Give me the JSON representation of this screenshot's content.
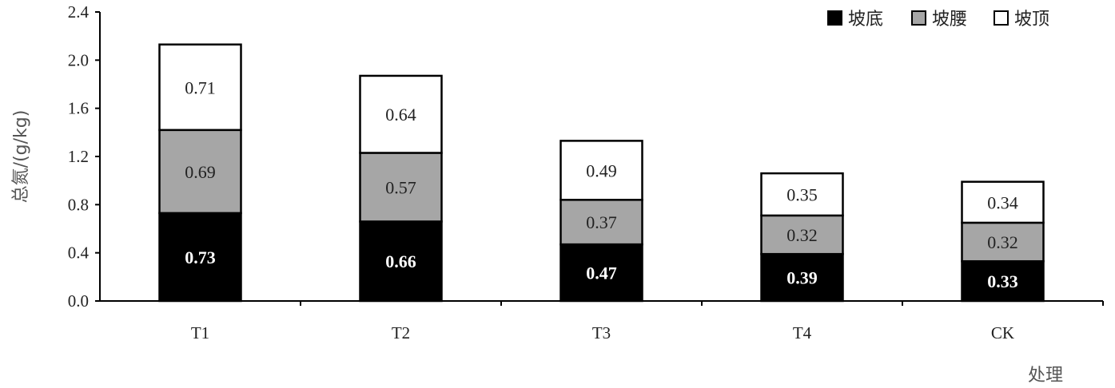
{
  "chart_data": {
    "type": "bar",
    "stacked": true,
    "categories": [
      "T1",
      "T2",
      "T3",
      "T4",
      "CK"
    ],
    "series": [
      {
        "name": "坡底",
        "values": [
          0.73,
          0.66,
          0.47,
          0.39,
          0.33
        ],
        "color": "#000000",
        "labels": [
          "0.73",
          "0.66",
          "0.47",
          "0.39",
          "0.33"
        ],
        "label_color": "#ffffff"
      },
      {
        "name": "坡腰",
        "values": [
          0.69,
          0.57,
          0.37,
          0.32,
          0.32
        ],
        "color": "#a6a6a6",
        "labels": [
          "0.69",
          "0.57",
          "0.37",
          "0.32",
          "0.32"
        ],
        "label_color": "#222222"
      },
      {
        "name": "坡顶",
        "values": [
          0.71,
          0.64,
          0.49,
          0.35,
          0.34
        ],
        "color": "#ffffff",
        "labels": [
          "0.71",
          "0.64",
          "0.49",
          "0.35",
          "0.34"
        ],
        "label_color": "#222222"
      }
    ],
    "ylabel": "总氮/(g/kg)",
    "xlabel": "处理",
    "ylim": [
      0,
      2.4
    ],
    "yticks": [
      "0.0",
      "0.4",
      "0.8",
      "1.2",
      "1.6",
      "2.0",
      "2.4"
    ],
    "grid": false,
    "legend": "top-right"
  }
}
